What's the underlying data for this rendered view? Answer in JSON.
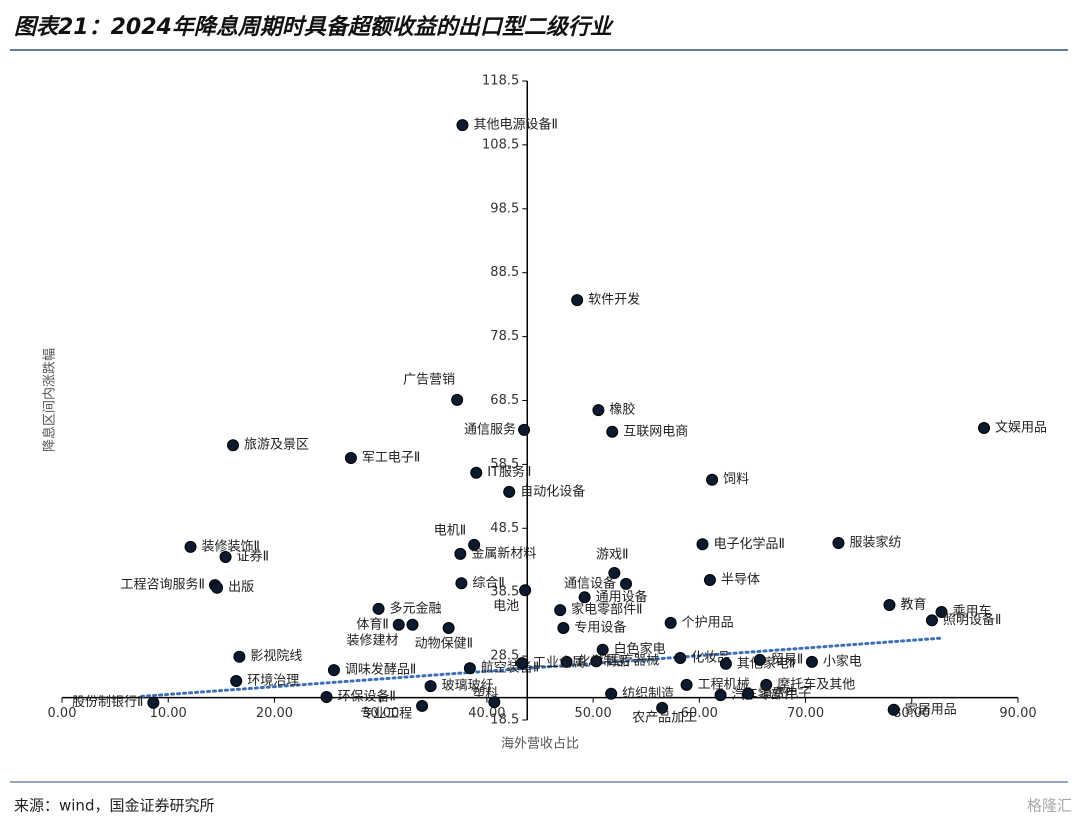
{
  "header": {
    "title": "图表21：2024年降息周期时具备超额收益的出口型二级行业"
  },
  "chart_data": {
    "type": "scatter",
    "x_label": "海外营收占比",
    "y_label": "降息区间内涨跌幅",
    "xlim": [
      0,
      90
    ],
    "ylim": [
      18.5,
      118.5
    ],
    "xticks": [
      {
        "value": 0,
        "label": "0.00"
      },
      {
        "value": 10,
        "label": "10.00"
      },
      {
        "value": 20,
        "label": "20.00"
      },
      {
        "value": 30,
        "label": "30.00"
      },
      {
        "value": 40,
        "label": "40.00"
      },
      {
        "value": 50,
        "label": "50.00"
      },
      {
        "value": 60,
        "label": "60.00"
      },
      {
        "value": 70,
        "label": "70.00"
      },
      {
        "value": 80,
        "label": "80.00"
      },
      {
        "value": 90,
        "label": "90.00"
      }
    ],
    "yticks": [
      18.5,
      28.5,
      38.5,
      48.5,
      58.5,
      68.5,
      78.5,
      88.5,
      98.5,
      108.5,
      118.5
    ],
    "x_axis_at": 22,
    "y_axis_at": 43.8,
    "color": "#0b1a2e",
    "labels": [
      "其他电源设备Ⅱ",
      "软件开发",
      "广告营销",
      "橡胶",
      "通信服务",
      "互联网电商",
      "文娱用品",
      "旅游及景区",
      "军工电子Ⅱ",
      "IT服务Ⅱ",
      "饲料",
      "自动化设备",
      "电机Ⅱ",
      "装修装饰Ⅱ",
      "证券Ⅱ",
      "金属新材料",
      "电子化学品Ⅱ",
      "服装家纺",
      "游戏Ⅱ",
      "工程咨询服务Ⅱ",
      "出版",
      "综合Ⅱ",
      "半导体",
      "通信设备",
      "电池",
      "通用设备",
      "家电零部件Ⅱ",
      "专用设备",
      "个护用品",
      "教育",
      "乘用车",
      "照明设备Ⅱ",
      "多元金融",
      "体育Ⅱ",
      "装修建材",
      "动物保健Ⅱ",
      "影视院线",
      "调味发酵品Ⅱ",
      "航空装备Ⅱ",
      "环境治理",
      "玻璃玻纤",
      "股份制银行Ⅱ",
      "环保设备Ⅱ",
      "白色家电",
      "医疗器械",
      "化学制品",
      "工业金属",
      "化妆品",
      "其他家电Ⅱ",
      "贸易Ⅱ",
      "小家电",
      "工程机械",
      "摩托车及其他",
      "纺织制造",
      "汽车零部件",
      "消费电子",
      "农产品加工",
      "家居用品",
      "专业工程",
      "塑料"
    ],
    "x": [
      37.7,
      48.5,
      37.2,
      50.5,
      43.5,
      51.8,
      86.8,
      16.1,
      27.2,
      39.0,
      61.2,
      42.1,
      38.8,
      12.1,
      15.4,
      37.5,
      60.3,
      73.1,
      52.0,
      14.4,
      14.6,
      37.6,
      61.0,
      53.1,
      43.6,
      49.2,
      46.9,
      47.2,
      57.3,
      77.9,
      82.8,
      81.9,
      29.8,
      31.7,
      33.0,
      36.4,
      16.7,
      25.6,
      38.4,
      16.4,
      34.7,
      8.6,
      24.9,
      50.9,
      50.3,
      47.5,
      43.3,
      58.2,
      62.5,
      65.7,
      70.6,
      58.8,
      66.3,
      51.7,
      62.0,
      64.6,
      56.5,
      78.3,
      33.9,
      40.7
    ],
    "values": [
      111.6,
      84.2,
      68.6,
      67.0,
      63.9,
      63.6,
      64.2,
      61.5,
      59.5,
      57.2,
      56.1,
      54.2,
      45.9,
      45.6,
      44.0,
      44.5,
      46.0,
      46.2,
      41.5,
      39.6,
      39.2,
      39.9,
      40.4,
      39.8,
      38.8,
      37.7,
      35.7,
      32.9,
      33.7,
      36.5,
      35.4,
      34.1,
      35.9,
      33.4,
      33.4,
      32.9,
      28.4,
      26.3,
      26.6,
      24.6,
      23.8,
      21.2,
      22.1,
      29.5,
      27.7,
      27.6,
      27.4,
      28.2,
      27.3,
      27.9,
      27.6,
      24.0,
      24.0,
      22.6,
      22.4,
      22.6,
      20.4,
      20.1,
      20.7,
      21.3
    ],
    "trendline": {
      "x": [
        7.5,
        82.7
      ],
      "values": [
        22.2,
        31.3
      ],
      "color": "#3d6fb8"
    }
  },
  "footer": {
    "source": "来源：wind，国金证券研究所",
    "watermark": "格隆汇"
  }
}
